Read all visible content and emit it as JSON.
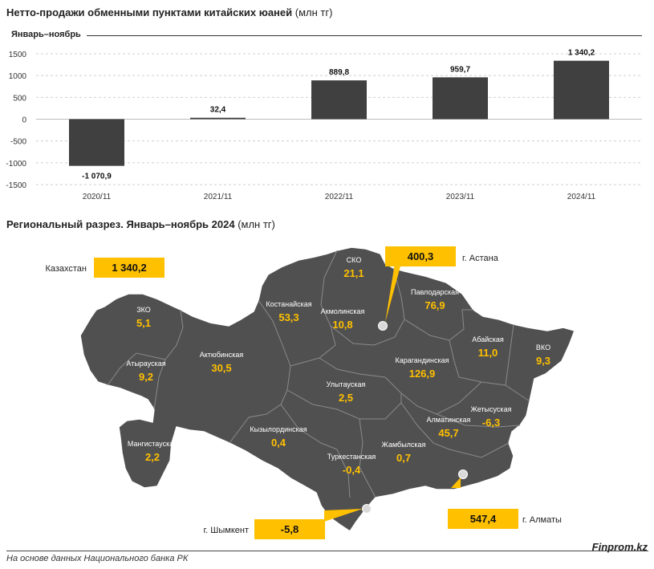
{
  "header": {
    "title_bold": "Нетто-продажи обменными пунктами китайских юаней",
    "title_unit": " (млн тг)",
    "period": "Январь–ноябрь"
  },
  "chart_data": {
    "type": "bar",
    "categories": [
      "2020/11",
      "2021/11",
      "2022/11",
      "2023/11",
      "2024/11"
    ],
    "values": [
      -1070.9,
      32.4,
      889.8,
      959.7,
      1340.2
    ],
    "value_labels": [
      "-1 070,9",
      "32,4",
      "889,8",
      "959,7",
      "1 340,2"
    ],
    "ylim": [
      -1500,
      1500
    ],
    "yticks": [
      1500,
      1000,
      500,
      0,
      -500,
      -1000,
      -1500
    ],
    "ytick_labels": [
      "1500",
      "1000",
      "500",
      "0",
      "-500",
      "-1000",
      "-1500"
    ],
    "bar_color": "#404040",
    "grid": true
  },
  "map_section": {
    "title_bold": "Региональный разрез. Январь–ноябрь 2024",
    "title_unit": " (млн тг)",
    "accent_color": "#ffc000",
    "region_fill": "#505050",
    "kazakhstan": {
      "label": "Казахстан",
      "value": "1 340,2"
    },
    "cities": [
      {
        "label": "г. Астана",
        "value": "400,3"
      },
      {
        "label": "г. Алматы",
        "value": "547,4"
      },
      {
        "label": "г. Шымкент",
        "value": "-5,8"
      }
    ],
    "regions": [
      {
        "name": "СКО",
        "value": "21,1"
      },
      {
        "name": "Павлодарская",
        "value": "76,9"
      },
      {
        "name": "Костанайская",
        "value": "53,3"
      },
      {
        "name": "Акмолинская",
        "value": "10,8"
      },
      {
        "name": "ЗКО",
        "value": "5,1"
      },
      {
        "name": "Абайская",
        "value": "11,0"
      },
      {
        "name": "ВКО",
        "value": "9,3"
      },
      {
        "name": "Атырауская",
        "value": "9,2"
      },
      {
        "name": "Актюбинская",
        "value": "30,5"
      },
      {
        "name": "Карагандинская",
        "value": "126,9"
      },
      {
        "name": "Улытауская",
        "value": "2,5"
      },
      {
        "name": "Жетысуская",
        "value": "-6,3"
      },
      {
        "name": "Алматинская",
        "value": "45,7"
      },
      {
        "name": "Кызылординская",
        "value": "0,4"
      },
      {
        "name": "Мангистауская",
        "value": "2,2"
      },
      {
        "name": "Жамбылская",
        "value": "0,7"
      },
      {
        "name": "Туркестанская",
        "value": "-0,4"
      }
    ]
  },
  "footer": {
    "source": "На основе данных Национального банка РК",
    "brand": "Finprom.kz"
  }
}
